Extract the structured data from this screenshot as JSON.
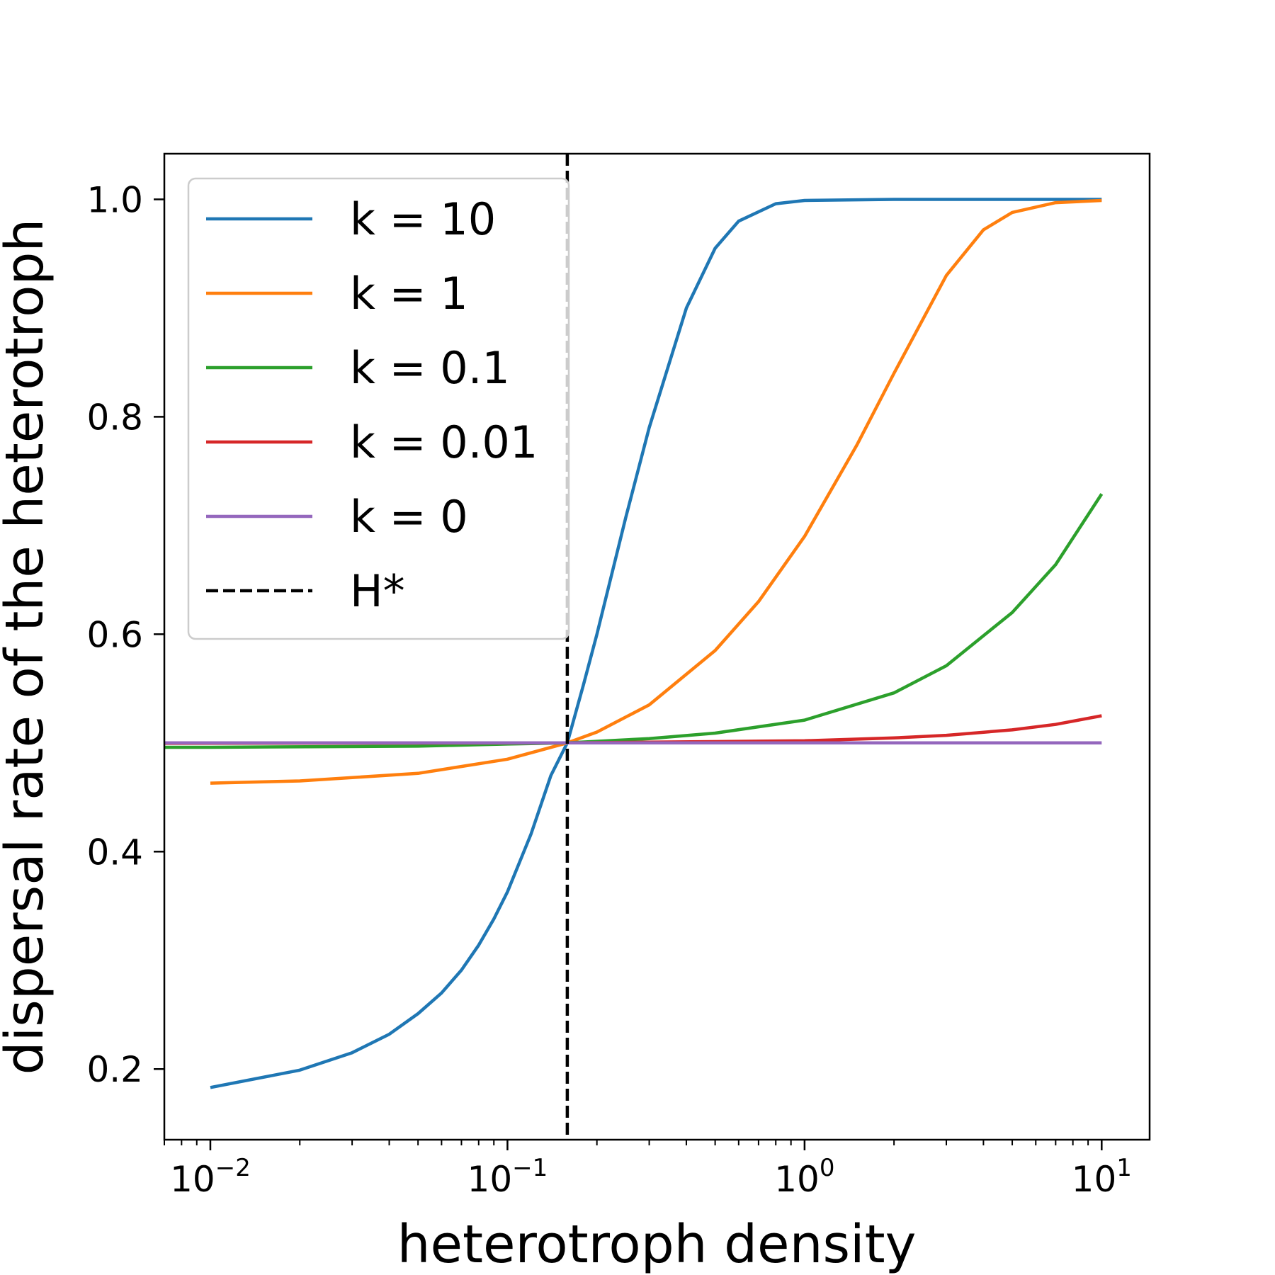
{
  "chart_data": {
    "type": "line",
    "xlabel": "heterotroph density",
    "ylabel": "dispersal rate of the heterotroph",
    "xscale": "log",
    "xlim": [
      0.007,
      14.5
    ],
    "ylim": [
      0.135,
      1.042
    ],
    "grid": false,
    "legend_position": "top-left",
    "x_ticks": [
      {
        "base": "10",
        "exp": "−2",
        "value": 0.01
      },
      {
        "base": "10",
        "exp": "−1",
        "value": 0.1
      },
      {
        "base": "10",
        "exp": "0",
        "value": 1
      },
      {
        "base": "10",
        "exp": "1",
        "value": 10
      }
    ],
    "y_ticks": [
      {
        "label": "0.2",
        "value": 0.2
      },
      {
        "label": "0.4",
        "value": 0.4
      },
      {
        "label": "0.6",
        "value": 0.6
      },
      {
        "label": "0.8",
        "value": 0.8
      },
      {
        "label": "1.0",
        "value": 1.0
      }
    ],
    "series": [
      {
        "name": "k = 10",
        "k": 10,
        "color": "#1f77b4",
        "x": [
          0.01,
          0.02,
          0.03,
          0.04,
          0.05,
          0.06,
          0.07,
          0.08,
          0.09,
          0.1,
          0.12,
          0.14,
          0.159,
          0.18,
          0.2,
          0.25,
          0.3,
          0.4,
          0.5,
          0.6,
          0.8,
          1,
          2,
          5,
          10
        ],
        "y": [
          0.183,
          0.199,
          0.215,
          0.232,
          0.251,
          0.27,
          0.291,
          0.314,
          0.338,
          0.363,
          0.416,
          0.47,
          0.5,
          0.553,
          0.6,
          0.707,
          0.79,
          0.9,
          0.955,
          0.98,
          0.996,
          0.999,
          1.0,
          1.0,
          1.0
        ]
      },
      {
        "name": "k = 1",
        "k": 1,
        "color": "#ff7f0e",
        "x": [
          0.01,
          0.02,
          0.05,
          0.1,
          0.159,
          0.2,
          0.3,
          0.5,
          0.7,
          1,
          1.5,
          2,
          3,
          4,
          5,
          7,
          10
        ],
        "y": [
          0.463,
          0.465,
          0.472,
          0.485,
          0.5,
          0.51,
          0.535,
          0.585,
          0.63,
          0.69,
          0.774,
          0.84,
          0.93,
          0.972,
          0.988,
          0.997,
          0.999
        ]
      },
      {
        "name": "k = 0.1",
        "k": 0.1,
        "color": "#2ca02c",
        "x": [
          0.007,
          0.01,
          0.05,
          0.1,
          0.159,
          0.3,
          0.5,
          1,
          2,
          3,
          5,
          7,
          10
        ],
        "y": [
          0.496,
          0.496,
          0.497,
          0.499,
          0.5,
          0.504,
          0.509,
          0.521,
          0.546,
          0.571,
          0.62,
          0.664,
          0.729
        ]
      },
      {
        "name": "k = 0.01",
        "k": 0.01,
        "color": "#d62728",
        "x": [
          0.007,
          0.159,
          1,
          2,
          3,
          5,
          7,
          10
        ],
        "y": [
          0.4996,
          0.5,
          0.502,
          0.5046,
          0.507,
          0.512,
          0.517,
          0.525
        ]
      },
      {
        "name": "k = 0",
        "k": 0,
        "color": "#9467bd",
        "x": [
          0.007,
          10
        ],
        "y": [
          0.5,
          0.5
        ]
      }
    ],
    "reference_line": {
      "name": "H*",
      "orientation": "vertical",
      "x": 0.159,
      "style": "dashed",
      "color": "#000000"
    }
  }
}
